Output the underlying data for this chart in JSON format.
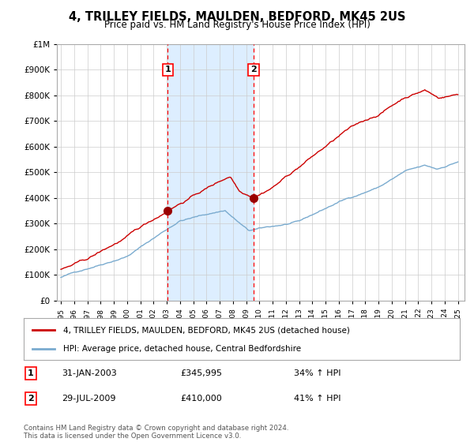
{
  "title": "4, TRILLEY FIELDS, MAULDEN, BEDFORD, MK45 2US",
  "subtitle": "Price paid vs. HM Land Registry's House Price Index (HPI)",
  "legend_line1": "4, TRILLEY FIELDS, MAULDEN, BEDFORD, MK45 2US (detached house)",
  "legend_line2": "HPI: Average price, detached house, Central Bedfordshire",
  "sale1_date_label": "31-JAN-2003",
  "sale1_price": 345995,
  "sale1_hpi_pct": "34% ↑ HPI",
  "sale2_date_label": "29-JUL-2009",
  "sale2_price": 410000,
  "sale2_hpi_pct": "41% ↑ HPI",
  "footnote": "Contains HM Land Registry data © Crown copyright and database right 2024.\nThis data is licensed under the Open Government Licence v3.0.",
  "sale1_x": 2003.08,
  "sale2_x": 2009.57,
  "background_color": "#ffffff",
  "shade_color": "#ddeeff",
  "red_color": "#cc0000",
  "blue_color": "#7aabcf",
  "grid_color": "#cccccc",
  "ylim": [
    0,
    1000000
  ],
  "xlim": [
    1994.7,
    2025.5
  ]
}
